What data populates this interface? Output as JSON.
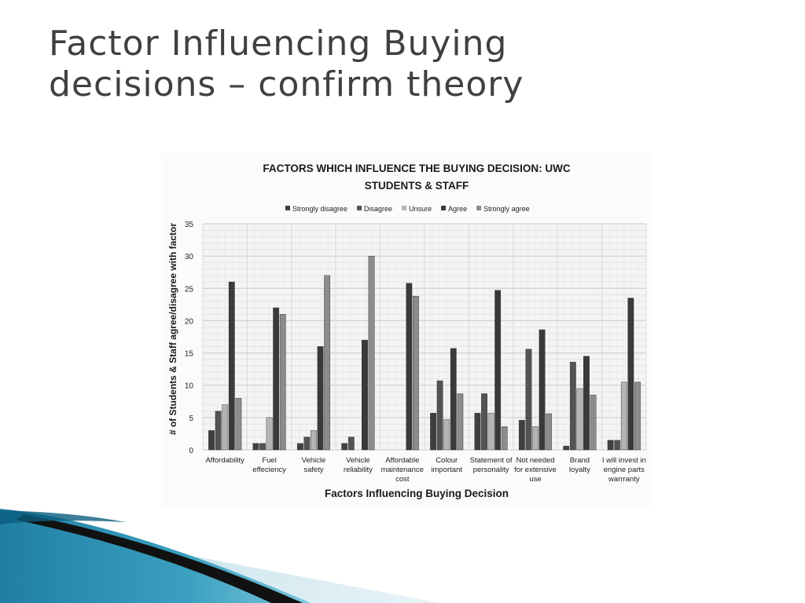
{
  "slide": {
    "title": "Factor Influencing Buying decisions – confirm theory"
  },
  "chart_data": {
    "type": "bar",
    "title": "FACTORS WHICH  INFLUENCE THE BUYING DECISION: UWC STUDENTS & STAFF",
    "title_lines": [
      "FACTORS WHICH  INFLUENCE THE BUYING DECISION: UWC",
      "STUDENTS & STAFF"
    ],
    "xlabel": "Factors Influencing Buying Decision",
    "ylabel": "# of Students & Staff agree/disagree with factor",
    "ylim": [
      0,
      35
    ],
    "yticks": [
      0,
      5,
      10,
      15,
      20,
      25,
      30,
      35
    ],
    "grid": true,
    "legend_position": "top",
    "categories": [
      [
        "Affordability"
      ],
      [
        "Fuel",
        "effeciency"
      ],
      [
        "Vehicle",
        "safety"
      ],
      [
        "Vehicle",
        "reliability"
      ],
      [
        "Affordable",
        "maintenance",
        "cost"
      ],
      [
        "Colour",
        "important"
      ],
      [
        "Statement of",
        "personality"
      ],
      [
        "Not needed",
        "for extensive",
        "use"
      ],
      [
        "Brand",
        "loyalty"
      ],
      [
        "I will invest in",
        "engine parts",
        "warrranty"
      ]
    ],
    "series": [
      {
        "name": "Strongly disagree",
        "color": "#3f3f3f",
        "values": [
          3,
          1,
          1,
          1,
          0,
          5.7,
          5.7,
          4.6,
          0.6,
          1.5
        ]
      },
      {
        "name": "Disagree",
        "color": "#535353",
        "values": [
          6,
          1,
          2,
          2,
          0,
          10.7,
          8.7,
          15.6,
          13.6,
          1.5
        ]
      },
      {
        "name": "Unsure",
        "color": "#b4b4b4",
        "values": [
          7,
          5,
          3,
          0,
          0,
          4.7,
          5.7,
          3.6,
          9.5,
          10.5
        ]
      },
      {
        "name": "Agree",
        "color": "#3a3a3a",
        "values": [
          26,
          22,
          16,
          17,
          25.8,
          15.7,
          24.7,
          18.6,
          14.5,
          23.5
        ]
      },
      {
        "name": "Strongly agree",
        "color": "#8c8c8c",
        "values": [
          8,
          21,
          27,
          30,
          23.8,
          8.7,
          3.6,
          5.6,
          8.5,
          10.5
        ]
      }
    ]
  }
}
